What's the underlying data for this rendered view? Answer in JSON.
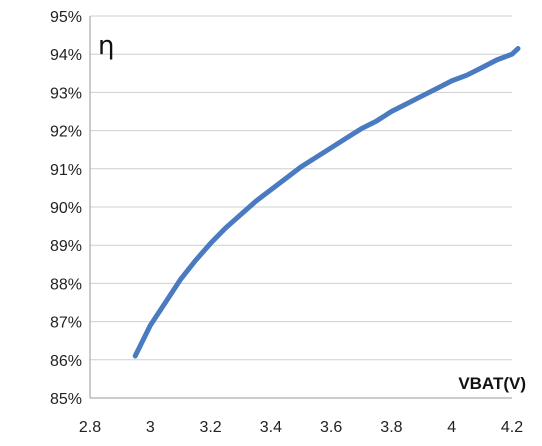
{
  "chart_data": {
    "type": "line",
    "title": "",
    "xlabel": "VBAT(V)",
    "ylabel": "η",
    "xlim": [
      2.8,
      4.2
    ],
    "ylim": [
      85,
      95
    ],
    "x_ticks": [
      "2.8",
      "3",
      "3.2",
      "3.4",
      "3.6",
      "3.8",
      "4",
      "4.2"
    ],
    "y_ticks": [
      "85%",
      "86%",
      "87%",
      "88%",
      "89%",
      "90%",
      "91%",
      "92%",
      "93%",
      "94%",
      "95%"
    ],
    "grid": "horizontal",
    "series": [
      {
        "color": "#4a7bc0",
        "x": [
          2.95,
          3.0,
          3.05,
          3.1,
          3.15,
          3.2,
          3.25,
          3.3,
          3.35,
          3.4,
          3.45,
          3.5,
          3.55,
          3.6,
          3.65,
          3.7,
          3.75,
          3.8,
          3.85,
          3.9,
          3.95,
          4.0,
          4.05,
          4.1,
          4.15,
          4.2,
          4.22
        ],
        "y": [
          86.1,
          86.9,
          87.5,
          88.1,
          88.6,
          89.05,
          89.45,
          89.8,
          90.15,
          90.45,
          90.75,
          91.05,
          91.3,
          91.55,
          91.8,
          92.05,
          92.25,
          92.5,
          92.7,
          92.9,
          93.1,
          93.3,
          93.45,
          93.65,
          93.85,
          94.0,
          94.15
        ]
      }
    ]
  }
}
